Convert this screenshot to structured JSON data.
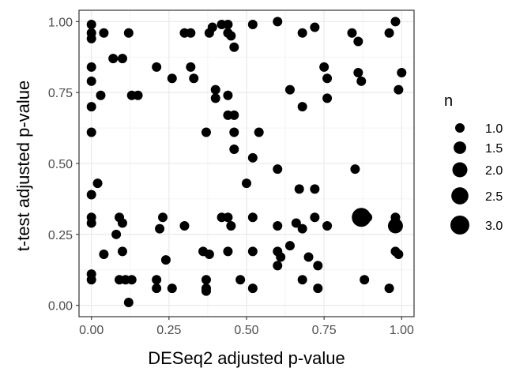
{
  "chart_data": {
    "type": "scatter",
    "xlabel": "DESeq2 adjusted p-value",
    "ylabel": "t-test adjusted p-value",
    "xlim": [
      -0.04,
      1.04
    ],
    "ylim": [
      -0.04,
      1.04
    ],
    "xticks": [
      0.0,
      0.25,
      0.5,
      0.75,
      1.0
    ],
    "xtick_labels": [
      "0.00",
      "0.25",
      "0.50",
      "0.75",
      "1.00"
    ],
    "yticks": [
      0.0,
      0.25,
      0.5,
      0.75,
      1.0
    ],
    "ytick_labels": [
      "0.00",
      "0.25",
      "0.50",
      "0.75",
      "1.00"
    ],
    "grid": true,
    "point_color": "#000000",
    "legend": {
      "title": "n",
      "placement": "right",
      "entries": [
        {
          "label": "1.0",
          "n": 1.0
        },
        {
          "label": "1.5",
          "n": 1.5
        },
        {
          "label": "2.0",
          "n": 2.0
        },
        {
          "label": "2.5",
          "n": 2.5
        },
        {
          "label": "3.0",
          "n": 3.0
        }
      ]
    },
    "points": [
      {
        "x": 0.0,
        "y": 0.99,
        "n": 1
      },
      {
        "x": 0.0,
        "y": 0.96,
        "n": 1
      },
      {
        "x": 0.0,
        "y": 0.94,
        "n": 1
      },
      {
        "x": 0.04,
        "y": 0.96,
        "n": 1
      },
      {
        "x": 0.12,
        "y": 0.96,
        "n": 1
      },
      {
        "x": 0.3,
        "y": 0.96,
        "n": 1
      },
      {
        "x": 0.32,
        "y": 0.96,
        "n": 1
      },
      {
        "x": 0.38,
        "y": 0.96,
        "n": 1
      },
      {
        "x": 0.39,
        "y": 0.98,
        "n": 1
      },
      {
        "x": 0.42,
        "y": 0.99,
        "n": 1
      },
      {
        "x": 0.44,
        "y": 0.99,
        "n": 1
      },
      {
        "x": 0.44,
        "y": 0.96,
        "n": 1
      },
      {
        "x": 0.45,
        "y": 0.95,
        "n": 1
      },
      {
        "x": 0.46,
        "y": 0.91,
        "n": 1
      },
      {
        "x": 0.52,
        "y": 0.99,
        "n": 1
      },
      {
        "x": 0.6,
        "y": 1.0,
        "n": 1
      },
      {
        "x": 0.68,
        "y": 0.96,
        "n": 1
      },
      {
        "x": 0.72,
        "y": 0.98,
        "n": 1
      },
      {
        "x": 0.84,
        "y": 0.96,
        "n": 1
      },
      {
        "x": 0.86,
        "y": 0.93,
        "n": 1
      },
      {
        "x": 0.96,
        "y": 0.96,
        "n": 1
      },
      {
        "x": 0.98,
        "y": 1.0,
        "n": 1
      },
      {
        "x": 0.07,
        "y": 0.87,
        "n": 1
      },
      {
        "x": 0.1,
        "y": 0.87,
        "n": 1
      },
      {
        "x": 0.0,
        "y": 0.84,
        "n": 1
      },
      {
        "x": 0.21,
        "y": 0.84,
        "n": 1
      },
      {
        "x": 0.26,
        "y": 0.8,
        "n": 1
      },
      {
        "x": 0.0,
        "y": 0.79,
        "n": 1
      },
      {
        "x": 0.4,
        "y": 0.76,
        "n": 1
      },
      {
        "x": 0.4,
        "y": 0.73,
        "n": 1
      },
      {
        "x": 0.32,
        "y": 0.84,
        "n": 1
      },
      {
        "x": 0.33,
        "y": 0.8,
        "n": 1
      },
      {
        "x": 0.75,
        "y": 0.84,
        "n": 1
      },
      {
        "x": 0.76,
        "y": 0.8,
        "n": 1
      },
      {
        "x": 0.86,
        "y": 0.82,
        "n": 1
      },
      {
        "x": 0.87,
        "y": 0.79,
        "n": 1
      },
      {
        "x": 1.0,
        "y": 0.82,
        "n": 1
      },
      {
        "x": 0.03,
        "y": 0.74,
        "n": 1
      },
      {
        "x": 0.13,
        "y": 0.74,
        "n": 1
      },
      {
        "x": 0.15,
        "y": 0.74,
        "n": 1
      },
      {
        "x": 0.44,
        "y": 0.74,
        "n": 1
      },
      {
        "x": 0.64,
        "y": 0.76,
        "n": 1
      },
      {
        "x": 0.76,
        "y": 0.73,
        "n": 1
      },
      {
        "x": 0.99,
        "y": 0.76,
        "n": 1
      },
      {
        "x": 0.0,
        "y": 0.7,
        "n": 1
      },
      {
        "x": 0.68,
        "y": 0.7,
        "n": 1
      },
      {
        "x": 0.44,
        "y": 0.67,
        "n": 1
      },
      {
        "x": 0.46,
        "y": 0.67,
        "n": 1
      },
      {
        "x": 0.0,
        "y": 0.61,
        "n": 1
      },
      {
        "x": 0.37,
        "y": 0.61,
        "n": 1
      },
      {
        "x": 0.46,
        "y": 0.61,
        "n": 1
      },
      {
        "x": 0.54,
        "y": 0.61,
        "n": 1
      },
      {
        "x": 0.46,
        "y": 0.55,
        "n": 1
      },
      {
        "x": 0.52,
        "y": 0.52,
        "n": 1
      },
      {
        "x": 0.6,
        "y": 0.48,
        "n": 1
      },
      {
        "x": 0.85,
        "y": 0.48,
        "n": 1
      },
      {
        "x": 0.5,
        "y": 0.43,
        "n": 1
      },
      {
        "x": 0.02,
        "y": 0.43,
        "n": 1
      },
      {
        "x": 0.67,
        "y": 0.41,
        "n": 1
      },
      {
        "x": 0.72,
        "y": 0.41,
        "n": 1
      },
      {
        "x": 0.0,
        "y": 0.39,
        "n": 1
      },
      {
        "x": 0.0,
        "y": 0.31,
        "n": 1
      },
      {
        "x": 0.0,
        "y": 0.29,
        "n": 1
      },
      {
        "x": 0.09,
        "y": 0.31,
        "n": 1
      },
      {
        "x": 0.1,
        "y": 0.29,
        "n": 1
      },
      {
        "x": 0.23,
        "y": 0.31,
        "n": 1
      },
      {
        "x": 0.42,
        "y": 0.31,
        "n": 1
      },
      {
        "x": 0.44,
        "y": 0.31,
        "n": 1
      },
      {
        "x": 0.52,
        "y": 0.31,
        "n": 1
      },
      {
        "x": 0.72,
        "y": 0.31,
        "n": 1
      },
      {
        "x": 0.87,
        "y": 0.31,
        "n": 3
      },
      {
        "x": 0.89,
        "y": 0.31,
        "n": 1
      },
      {
        "x": 0.98,
        "y": 0.31,
        "n": 1
      },
      {
        "x": 0.98,
        "y": 0.28,
        "n": 2
      },
      {
        "x": 0.68,
        "y": 0.27,
        "n": 1
      },
      {
        "x": 0.08,
        "y": 0.25,
        "n": 1
      },
      {
        "x": 0.22,
        "y": 0.27,
        "n": 1
      },
      {
        "x": 0.3,
        "y": 0.28,
        "n": 1
      },
      {
        "x": 0.45,
        "y": 0.28,
        "n": 1
      },
      {
        "x": 0.6,
        "y": 0.28,
        "n": 1
      },
      {
        "x": 0.66,
        "y": 0.29,
        "n": 1
      },
      {
        "x": 0.76,
        "y": 0.28,
        "n": 1
      },
      {
        "x": 0.04,
        "y": 0.18,
        "n": 1
      },
      {
        "x": 0.1,
        "y": 0.19,
        "n": 1
      },
      {
        "x": 0.24,
        "y": 0.16,
        "n": 1
      },
      {
        "x": 0.36,
        "y": 0.19,
        "n": 1
      },
      {
        "x": 0.38,
        "y": 0.18,
        "n": 1
      },
      {
        "x": 0.44,
        "y": 0.19,
        "n": 1
      },
      {
        "x": 0.52,
        "y": 0.19,
        "n": 1
      },
      {
        "x": 0.6,
        "y": 0.19,
        "n": 1
      },
      {
        "x": 0.61,
        "y": 0.17,
        "n": 1
      },
      {
        "x": 0.64,
        "y": 0.21,
        "n": 1
      },
      {
        "x": 0.7,
        "y": 0.17,
        "n": 1
      },
      {
        "x": 0.73,
        "y": 0.14,
        "n": 1
      },
      {
        "x": 0.6,
        "y": 0.14,
        "n": 1
      },
      {
        "x": 0.98,
        "y": 0.19,
        "n": 1
      },
      {
        "x": 0.99,
        "y": 0.18,
        "n": 1
      },
      {
        "x": 0.0,
        "y": 0.11,
        "n": 1
      },
      {
        "x": 0.0,
        "y": 0.09,
        "n": 1
      },
      {
        "x": 0.09,
        "y": 0.09,
        "n": 1
      },
      {
        "x": 0.11,
        "y": 0.09,
        "n": 1
      },
      {
        "x": 0.13,
        "y": 0.09,
        "n": 1
      },
      {
        "x": 0.21,
        "y": 0.09,
        "n": 1
      },
      {
        "x": 0.21,
        "y": 0.06,
        "n": 1
      },
      {
        "x": 0.26,
        "y": 0.06,
        "n": 1
      },
      {
        "x": 0.37,
        "y": 0.09,
        "n": 1
      },
      {
        "x": 0.37,
        "y": 0.06,
        "n": 1
      },
      {
        "x": 0.37,
        "y": 0.05,
        "n": 1
      },
      {
        "x": 0.48,
        "y": 0.09,
        "n": 1
      },
      {
        "x": 0.52,
        "y": 0.06,
        "n": 1
      },
      {
        "x": 0.68,
        "y": 0.09,
        "n": 1
      },
      {
        "x": 0.73,
        "y": 0.06,
        "n": 1
      },
      {
        "x": 0.88,
        "y": 0.09,
        "n": 1
      },
      {
        "x": 0.96,
        "y": 0.06,
        "n": 1
      },
      {
        "x": 0.12,
        "y": 0.01,
        "n": 1
      }
    ]
  }
}
